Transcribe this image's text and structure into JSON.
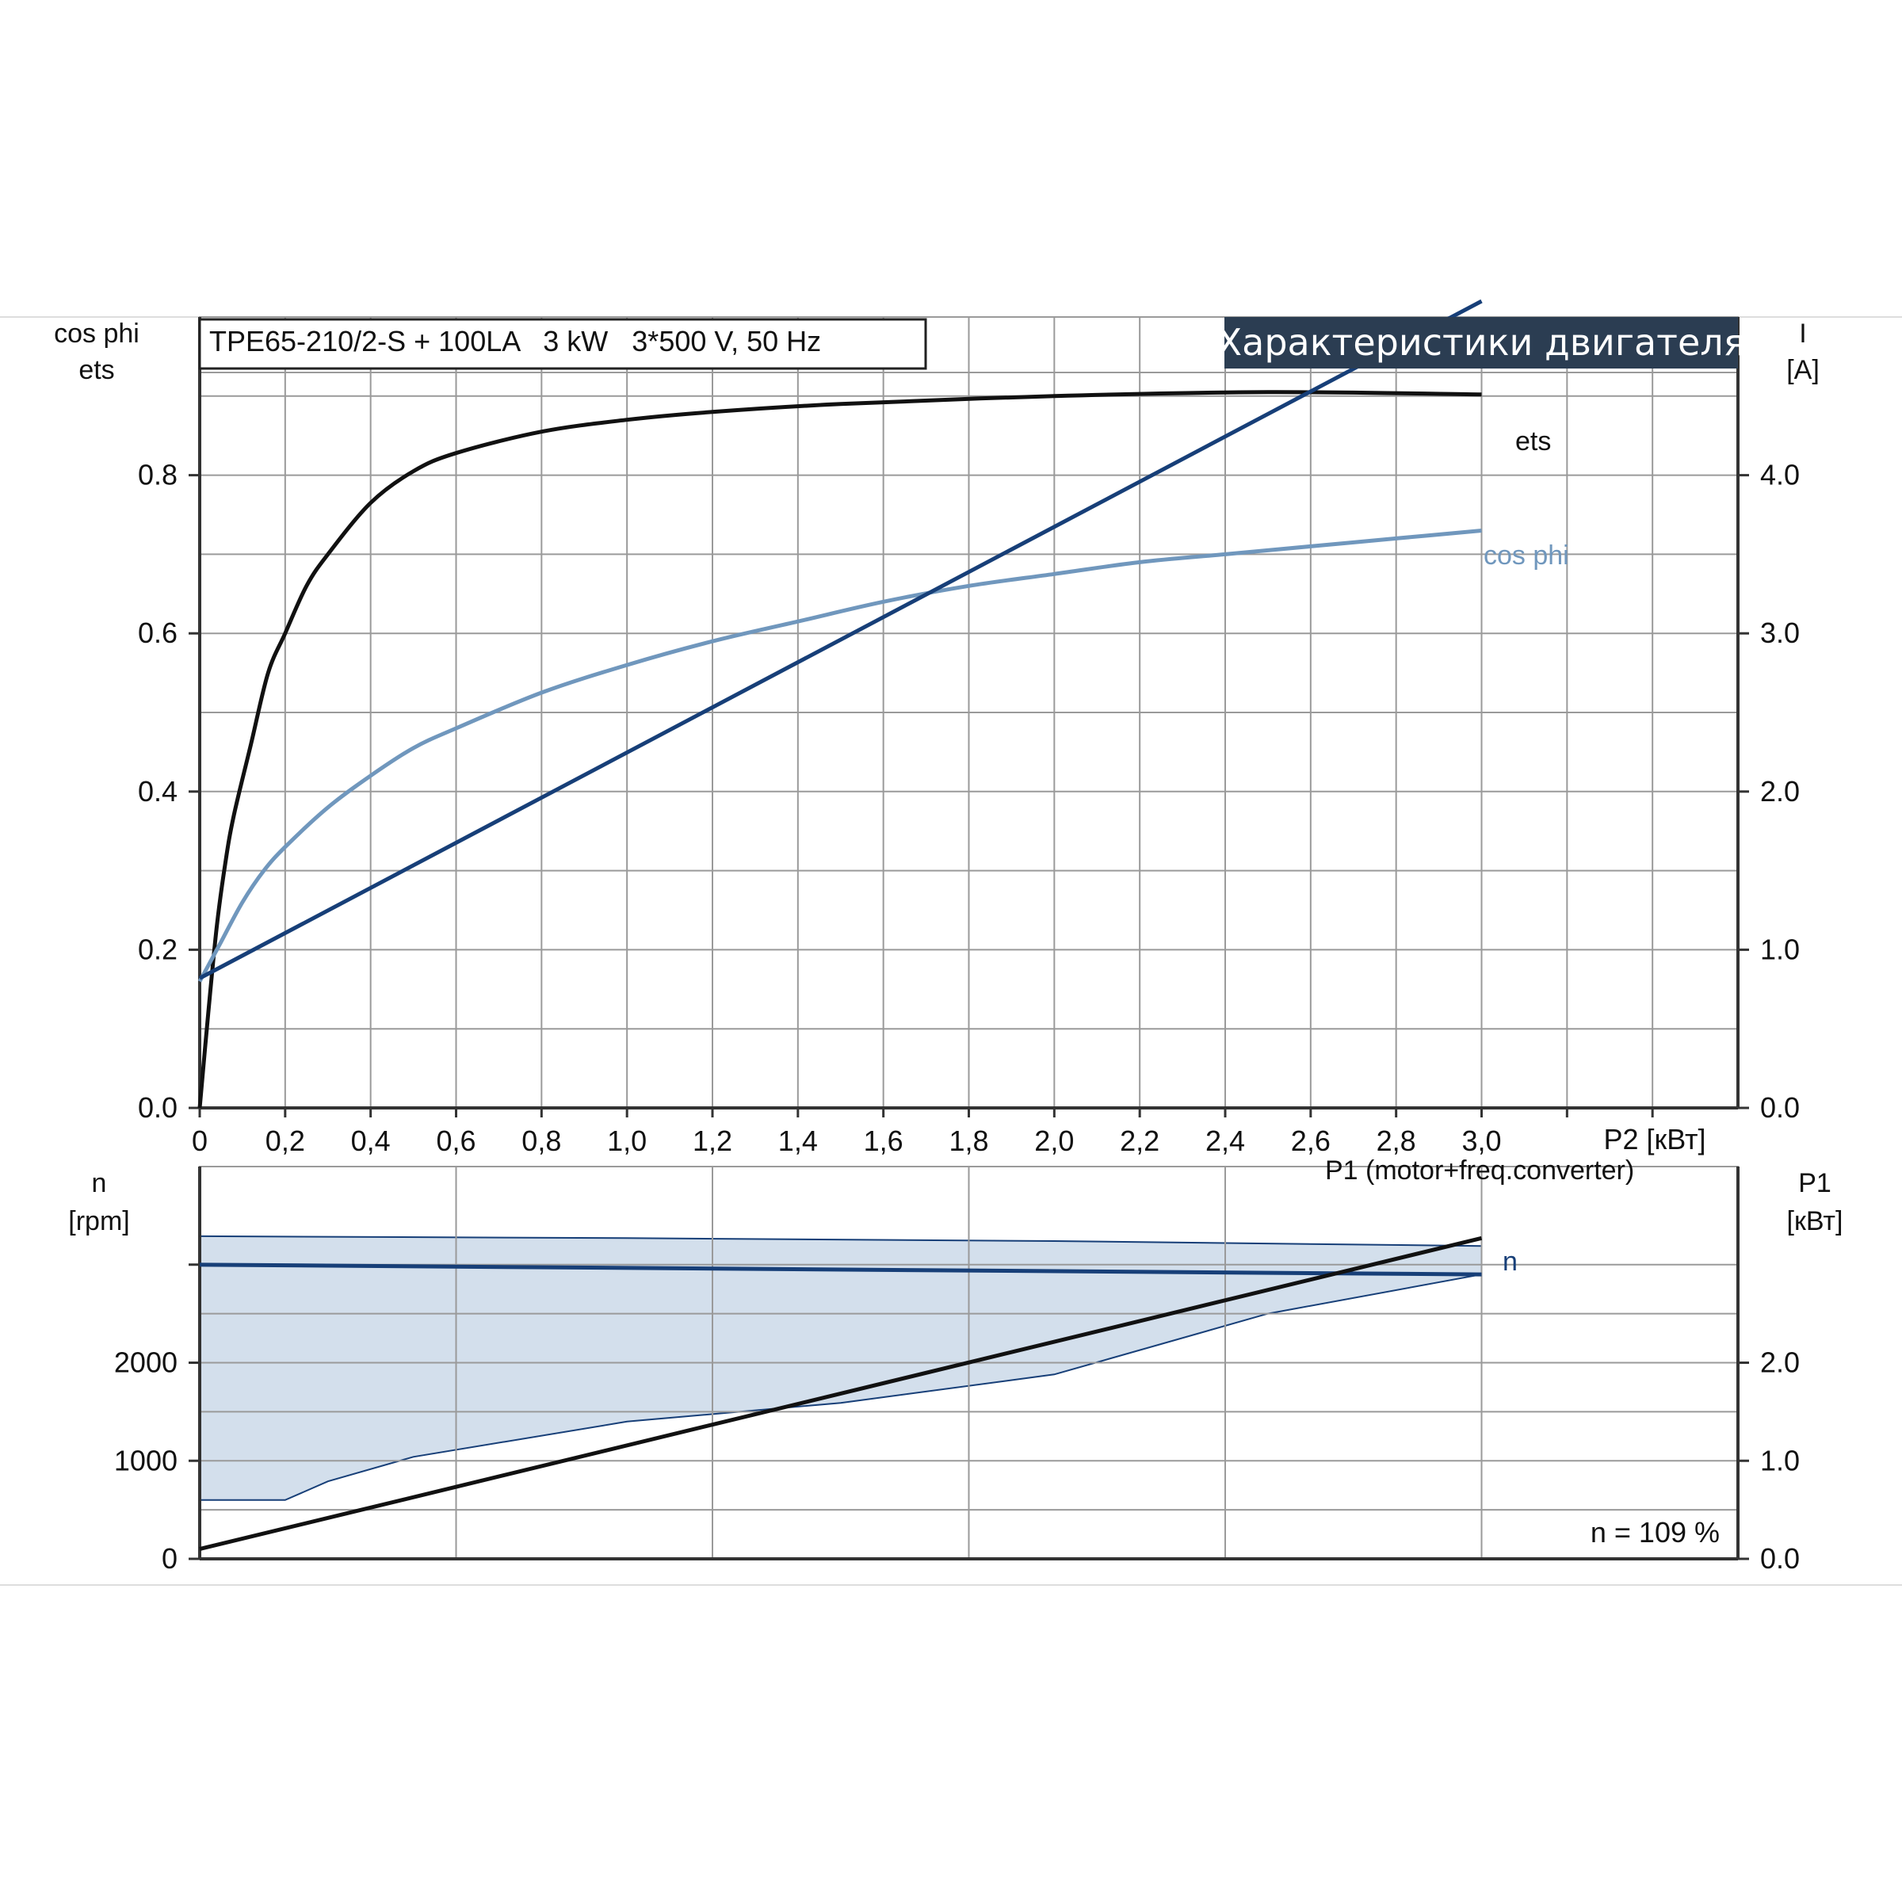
{
  "model_label": "TPE65-210/2-S + 100LA   3 kW   3*500 V, 50 Hz",
  "badge": "Характеристики двигателя",
  "footnote": "n = 109 %",
  "colors": {
    "ets": "#111111",
    "cos_phi": "#7097bd",
    "current": "#173f78",
    "speed": "#173f78",
    "p1": "#111111",
    "band_fill": "#d3dfec",
    "grid": "#9a9a9a",
    "badge_bg": "#2b3d52"
  },
  "chart_data": [
    {
      "type": "line",
      "x_axis": {
        "label": "P2 [кВт]",
        "range": [
          0,
          3.6
        ],
        "ticks": [
          "0",
          "0,2",
          "0,4",
          "0,6",
          "0,8",
          "1,0",
          "1,2",
          "1,4",
          "1,6",
          "1,8",
          "2,0",
          "2,2",
          "2,4",
          "2,6",
          "2,8",
          "3,0"
        ]
      },
      "y_left": {
        "label_lines": [
          "cos phi",
          "ets"
        ],
        "range": [
          0,
          1.0
        ],
        "ticks": [
          "0.0",
          "0.2",
          "0.4",
          "0.6",
          "0.8"
        ]
      },
      "y_right": {
        "label_lines": [
          "I",
          "[A]"
        ],
        "range": [
          0,
          5.0
        ],
        "ticks": [
          "0.0",
          "1.0",
          "2.0",
          "3.0",
          "4.0"
        ]
      },
      "grid": true,
      "series": [
        {
          "name": "ets",
          "axis": "left",
          "x": [
            0,
            0.02,
            0.04,
            0.06,
            0.08,
            0.12,
            0.16,
            0.2,
            0.25,
            0.3,
            0.4,
            0.5,
            0.6,
            0.8,
            1.0,
            1.2,
            1.5,
            2.0,
            2.5,
            3.0
          ],
          "y": [
            0,
            0.12,
            0.23,
            0.31,
            0.37,
            0.46,
            0.55,
            0.6,
            0.66,
            0.7,
            0.765,
            0.805,
            0.828,
            0.855,
            0.87,
            0.88,
            0.89,
            0.9,
            0.905,
            0.902
          ]
        },
        {
          "name": "cos phi",
          "axis": "left",
          "x": [
            0,
            0.02,
            0.05,
            0.1,
            0.15,
            0.2,
            0.3,
            0.4,
            0.5,
            0.6,
            0.8,
            1.0,
            1.2,
            1.4,
            1.6,
            1.8,
            2.0,
            2.2,
            2.4,
            2.6,
            2.8,
            3.0
          ],
          "y": [
            0.16,
            0.18,
            0.21,
            0.26,
            0.3,
            0.33,
            0.38,
            0.42,
            0.455,
            0.48,
            0.525,
            0.56,
            0.59,
            0.615,
            0.64,
            0.66,
            0.675,
            0.69,
            0.7,
            0.71,
            0.72,
            0.73
          ]
        },
        {
          "name": "I",
          "axis": "right",
          "x": [
            0,
            3.0
          ],
          "y": [
            0.82,
            5.1
          ]
        }
      ]
    },
    {
      "type": "line",
      "x_axis": {
        "range": [
          0,
          3.6
        ],
        "ticks": []
      },
      "y_left": {
        "label_lines": [
          "n",
          "[rpm]"
        ],
        "range": [
          0,
          4000
        ],
        "ticks": [
          "0",
          "1000",
          "2000"
        ]
      },
      "y_right": {
        "label_lines": [
          "P1",
          "[кВт]"
        ],
        "range": [
          0,
          4.0
        ],
        "ticks": [
          "0.0",
          "1.0",
          "2.0"
        ]
      },
      "grid": true,
      "series": [
        {
          "name": "n",
          "axis": "left",
          "x": [
            0,
            3.0
          ],
          "y": [
            3000,
            2900
          ]
        },
        {
          "name": "P1 (motor+freq.converter)",
          "axis": "right",
          "x": [
            0,
            3.0
          ],
          "y": [
            0.1,
            3.27
          ]
        }
      ],
      "band": {
        "axis": "left",
        "upper": {
          "x": [
            0,
            1.0,
            2.0,
            3.0
          ],
          "y": [
            3290,
            3270,
            3240,
            3190
          ]
        },
        "lower": {
          "x": [
            0,
            0.2,
            0.3,
            0.5,
            1.0,
            1.5,
            2.0,
            2.5,
            3.0
          ],
          "y": [
            600,
            600,
            790,
            1040,
            1400,
            1590,
            1880,
            2500,
            2900
          ]
        }
      }
    }
  ]
}
